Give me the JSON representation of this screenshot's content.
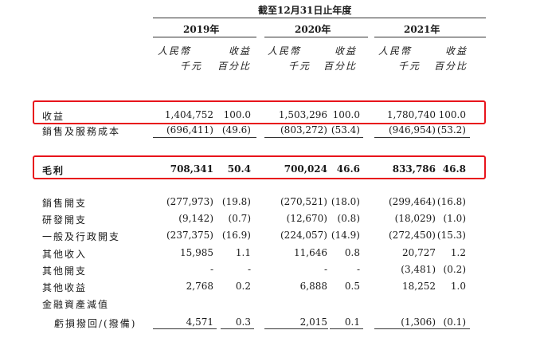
{
  "header": {
    "title": "截至12月31日止年度",
    "years": [
      "2019年",
      "2020年",
      "2021年"
    ],
    "col_a_line1": "人民幣",
    "col_a_line2": "千元",
    "col_b_line1": "收益",
    "col_b_line2": "百分比"
  },
  "rows": [
    {
      "label": "收益",
      "v": [
        "1,404,752",
        "100.0",
        "1,503,296",
        "100.0",
        "1,780,740",
        "100.0"
      ]
    },
    {
      "label": "銷售及服務成本",
      "v": [
        "(696,411)",
        "(49.6)",
        "(803,272)",
        "(53.4)",
        "(946,954)",
        "(53.2)"
      ]
    },
    {
      "label": "毛利",
      "v": [
        "708,341",
        "50.4",
        "700,024",
        "46.6",
        "833,786",
        "46.8"
      ]
    },
    {
      "label": "銷售開支",
      "v": [
        "(277,973)",
        "(19.8)",
        "(270,521)",
        "(18.0)",
        "(299,464)",
        "(16.8)"
      ]
    },
    {
      "label": "研發開支",
      "v": [
        "(9,142)",
        "(0.7)",
        "(12,670)",
        "(0.8)",
        "(18,029)",
        "(1.0)"
      ]
    },
    {
      "label": "一般及行政開支",
      "v": [
        "(237,375)",
        "(16.9)",
        "(224,057)",
        "(14.9)",
        "(272,450)",
        "(15.3)"
      ]
    },
    {
      "label": "其他收入",
      "v": [
        "15,985",
        "1.1",
        "11,646",
        "0.8",
        "20,727",
        "1.2"
      ]
    },
    {
      "label": "其他開支",
      "v": [
        "-",
        "-",
        "-",
        "-",
        "(3,481)",
        "(0.2)"
      ]
    },
    {
      "label": "其他收益",
      "v": [
        "2,768",
        "0.2",
        "6,888",
        "0.5",
        "18,252",
        "1.0"
      ]
    },
    {
      "label": "金融資產減值",
      "v": []
    },
    {
      "label": "虧損撥回/(撥備)",
      "v": [
        "4,571",
        "0.3",
        "2,015",
        "0.1",
        "(1,306)",
        "(0.1)"
      ]
    }
  ]
}
